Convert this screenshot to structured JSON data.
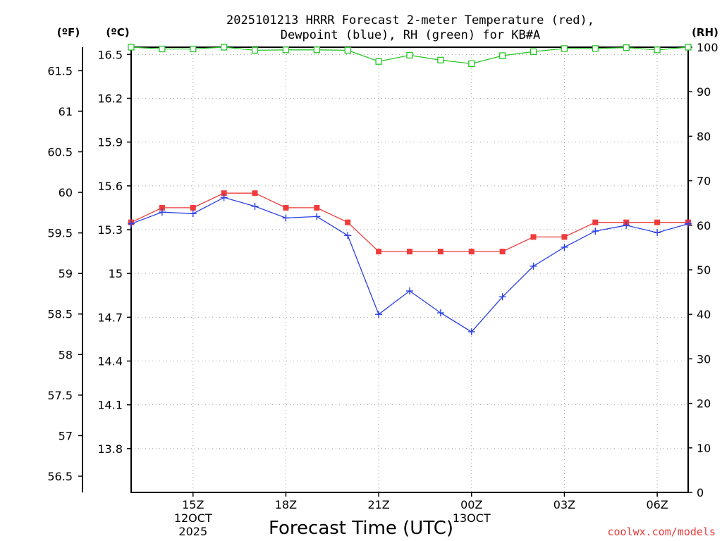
{
  "chart_data": {
    "type": "line",
    "title_line1": "2025101213 HRRR Forecast 2-meter Temperature (red),",
    "title_line2": "Dewpoint (blue), RH (green) for KB#A",
    "xlabel": "Forecast Time (UTC)",
    "watermark": "coolwx.com/models",
    "unit_f": "(ºF)",
    "unit_c": "(ºC)",
    "unit_rh": "(RH)",
    "x_range_hours": [
      13,
      31
    ],
    "x_ticks": [
      {
        "hour": 15,
        "lines": [
          "15Z",
          "12OCT",
          "2025"
        ]
      },
      {
        "hour": 18,
        "lines": [
          "18Z"
        ]
      },
      {
        "hour": 21,
        "lines": [
          "21Z"
        ]
      },
      {
        "hour": 24,
        "lines": [
          "00Z",
          "13OCT"
        ]
      },
      {
        "hour": 27,
        "lines": [
          "03Z"
        ]
      },
      {
        "hour": 30,
        "lines": [
          "06Z"
        ]
      }
    ],
    "c_axis": {
      "range": [
        13.5,
        16.55
      ],
      "ticks": [
        "13.8",
        "14.1",
        "14.4",
        "14.7",
        "15",
        "15.3",
        "15.6",
        "15.9",
        "16.2",
        "16.5"
      ]
    },
    "f_axis": {
      "range": [
        56.3,
        61.79
      ],
      "ticks": [
        "56.5",
        "57",
        "57.5",
        "58",
        "58.5",
        "59",
        "59.5",
        "60",
        "60.5",
        "61",
        "61.5"
      ]
    },
    "rh_axis": {
      "range": [
        0,
        100
      ],
      "ticks": [
        "0",
        "10",
        "20",
        "30",
        "40",
        "50",
        "60",
        "70",
        "80",
        "90",
        "100"
      ]
    },
    "series": [
      {
        "name": "Temperature",
        "color": "#ef3b3b",
        "marker": "filled-square",
        "units": "C",
        "x": [
          13,
          14,
          15,
          16,
          17,
          18,
          19,
          20,
          21,
          22,
          23,
          24,
          25,
          26,
          27,
          28,
          29,
          30,
          31
        ],
        "values": [
          15.35,
          15.45,
          15.45,
          15.55,
          15.55,
          15.45,
          15.45,
          15.35,
          15.15,
          15.15,
          15.15,
          15.15,
          15.15,
          15.25,
          15.25,
          15.35,
          15.35,
          15.35,
          15.35
        ]
      },
      {
        "name": "Dewpoint",
        "color": "#2b3fe6",
        "marker": "plus",
        "units": "C",
        "x": [
          13,
          14,
          15,
          16,
          17,
          18,
          19,
          20,
          21,
          22,
          23,
          24,
          25,
          26,
          27,
          28,
          29,
          30,
          31
        ],
        "values": [
          15.34,
          15.42,
          15.41,
          15.52,
          15.46,
          15.38,
          15.39,
          15.26,
          14.72,
          14.88,
          14.73,
          14.6,
          14.84,
          15.05,
          15.18,
          15.29,
          15.33,
          15.28,
          15.34
        ]
      },
      {
        "name": "RH",
        "color": "#27c627",
        "marker": "open-square",
        "units": "%",
        "x": [
          13,
          14,
          15,
          16,
          17,
          18,
          19,
          20,
          21,
          22,
          23,
          24,
          25,
          26,
          27,
          28,
          29,
          30,
          31
        ],
        "values": [
          100,
          99.6,
          99.6,
          100,
          99.3,
          99.4,
          99.4,
          99.3,
          96.8,
          98.2,
          97.1,
          96.3,
          98.1,
          99,
          99.7,
          99.7,
          99.9,
          99.4,
          100
        ]
      }
    ],
    "grid": "dotted"
  }
}
